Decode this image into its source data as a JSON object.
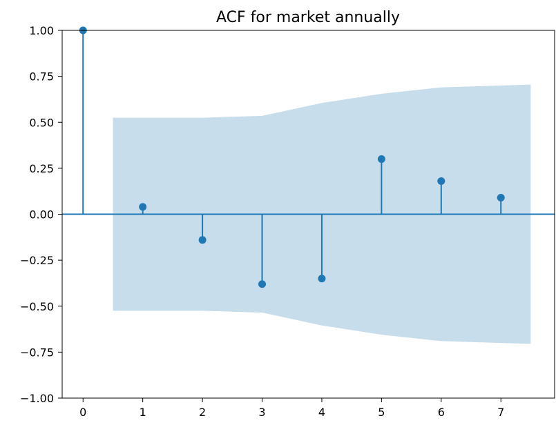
{
  "chart_data": {
    "type": "stem",
    "title": "ACF for market annually",
    "xlabel": "",
    "ylabel": "",
    "xlim": [
      -0.35,
      7.9
    ],
    "ylim": [
      -1.0,
      1.0
    ],
    "x_ticks": [
      "0",
      "1",
      "2",
      "3",
      "4",
      "5",
      "6",
      "7"
    ],
    "y_ticks": [
      "1.00",
      "0.75",
      "0.50",
      "0.25",
      "0.00",
      "−0.25",
      "−0.50",
      "−0.75",
      "−1.00"
    ],
    "y_tick_values": [
      1.0,
      0.75,
      0.5,
      0.25,
      0.0,
      -0.25,
      -0.5,
      -0.75,
      -1.0
    ],
    "lags": [
      0,
      1,
      2,
      3,
      4,
      5,
      6,
      7
    ],
    "acf": [
      1.0,
      0.04,
      -0.14,
      -0.38,
      -0.35,
      0.3,
      0.18,
      0.09
    ],
    "confidence_band": {
      "lags": [
        0.5,
        1,
        2,
        3,
        4,
        5,
        6,
        7,
        7.5
      ],
      "upper": [
        0.525,
        0.525,
        0.525,
        0.535,
        0.605,
        0.655,
        0.69,
        0.7,
        0.705
      ],
      "lower": [
        -0.525,
        -0.525,
        -0.525,
        -0.535,
        -0.605,
        -0.655,
        -0.69,
        -0.7,
        -0.705
      ]
    },
    "grid": false,
    "colors": {
      "stem": "#1f77b4",
      "band": "#1f77b4",
      "band_opacity": 0.25,
      "zero_line": "#1f77b4"
    }
  }
}
